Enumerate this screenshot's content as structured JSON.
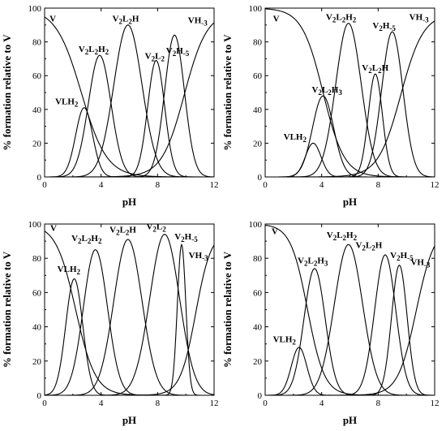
{
  "chart_data": [
    {
      "type": "line",
      "panel": "top-left",
      "xlabel": "pH",
      "ylabel": "% formation relative to V",
      "xlim": [
        0,
        12
      ],
      "ylim": [
        0,
        100
      ],
      "xticks": [
        "0",
        "4",
        "8",
        "12"
      ],
      "yticks": [
        "0",
        "20",
        "40",
        "60",
        "80",
        "100"
      ],
      "series": [
        {
          "name": "V",
          "kind": "decay",
          "mid": 2.6,
          "w": 0.9,
          "peak": 100
        },
        {
          "name": "VLH2",
          "kind": "peak",
          "center": 2.8,
          "w": 0.6,
          "peak": 41
        },
        {
          "name": "V2L2H2",
          "kind": "peak",
          "center": 3.9,
          "w": 0.8,
          "peak": 72
        },
        {
          "name": "V2L2H",
          "kind": "peak",
          "center": 5.9,
          "w": 1.0,
          "peak": 90
        },
        {
          "name": "V2L2",
          "kind": "peak",
          "center": 7.9,
          "w": 0.6,
          "peak": 69
        },
        {
          "name": "V2H-5",
          "kind": "peak",
          "center": 9.2,
          "w": 0.7,
          "peak": 84
        },
        {
          "name": "VH-3",
          "kind": "rise",
          "mid": 9.9,
          "w": 0.8,
          "peak": 98
        }
      ],
      "labels": [
        {
          "series": "V",
          "text": "V",
          "x": 0.35,
          "y": 92
        },
        {
          "series": "VLH2",
          "text": "VLH2",
          "x": 0.75,
          "y": 43
        },
        {
          "series": "V2L2H2",
          "text": "V2L2H2",
          "x": 2.4,
          "y": 74
        },
        {
          "series": "V2L2H",
          "text": "V2L2H",
          "x": 4.8,
          "y": 92
        },
        {
          "series": "V2L2",
          "text": "V2L2",
          "x": 7.1,
          "y": 70
        },
        {
          "series": "V2H-5",
          "text": "V2H-5",
          "x": 8.6,
          "y": 73
        },
        {
          "series": "VH-3",
          "text": "VH-3",
          "x": 10.15,
          "y": 91
        }
      ]
    },
    {
      "type": "line",
      "panel": "top-right",
      "xlabel": "pH",
      "ylabel": "% formation relative to V",
      "xlim": [
        0,
        12
      ],
      "ylim": [
        0,
        100
      ],
      "xticks": [
        "0",
        "4",
        "8",
        "12"
      ],
      "yticks": [
        "0",
        "20",
        "40",
        "60",
        "80",
        "100"
      ],
      "series": [
        {
          "name": "V",
          "kind": "decay",
          "mid": 4.1,
          "w": 0.75,
          "peak": 100
        },
        {
          "name": "VLH2",
          "kind": "peak",
          "center": 3.4,
          "w": 0.55,
          "peak": 20
        },
        {
          "name": "V2L2H3",
          "kind": "peak",
          "center": 4.1,
          "w": 0.75,
          "peak": 48
        },
        {
          "name": "V2L2H2",
          "kind": "peak",
          "center": 5.9,
          "w": 0.9,
          "peak": 91
        },
        {
          "name": "V2L2H",
          "kind": "peak",
          "center": 7.8,
          "w": 0.5,
          "peak": 61
        },
        {
          "name": "V2H-5",
          "kind": "peak",
          "center": 9.0,
          "w": 0.75,
          "peak": 86
        },
        {
          "name": "VH-3",
          "kind": "rise",
          "mid": 9.6,
          "w": 0.8,
          "peak": 97
        }
      ],
      "labels": [
        {
          "series": "V",
          "text": "V",
          "x": 0.55,
          "y": 92
        },
        {
          "series": "VLH2",
          "text": "VLH2",
          "x": 1.3,
          "y": 22
        },
        {
          "series": "V2L2H3",
          "text": "V2L2H3",
          "x": 3.3,
          "y": 50
        },
        {
          "series": "V2L2H2",
          "text": "V2L2H2",
          "x": 4.3,
          "y": 93
        },
        {
          "series": "V2L2H",
          "text": "V2L2H",
          "x": 6.85,
          "y": 63
        },
        {
          "series": "V2H-5",
          "text": "V2H-5",
          "x": 7.6,
          "y": 88
        },
        {
          "series": "VH-3",
          "text": "VH-3",
          "x": 10.2,
          "y": 93
        }
      ]
    },
    {
      "type": "line",
      "panel": "bottom-left",
      "xlabel": "pH",
      "ylabel": "% formation relative to V",
      "xlim": [
        0,
        12
      ],
      "ylim": [
        0,
        100
      ],
      "xticks": [
        "0",
        "4",
        "8",
        "12"
      ],
      "yticks": [
        "0",
        "20",
        "40",
        "60",
        "80",
        "100"
      ],
      "series": [
        {
          "name": "V",
          "kind": "decay",
          "mid": 2.2,
          "w": 0.7,
          "peak": 100
        },
        {
          "name": "VLH2",
          "kind": "peak",
          "center": 2.1,
          "w": 0.6,
          "peak": 68
        },
        {
          "name": "V2L2H2",
          "kind": "peak",
          "center": 3.6,
          "w": 0.85,
          "peak": 85
        },
        {
          "name": "V2L2H",
          "kind": "peak",
          "center": 5.9,
          "w": 1.0,
          "peak": 91
        },
        {
          "name": "V2L2",
          "kind": "peak",
          "center": 8.5,
          "w": 1.05,
          "peak": 94
        },
        {
          "name": "V2H-5",
          "kind": "peak",
          "center": 9.7,
          "w": 0.3,
          "peak": 88
        },
        {
          "name": "VH-3",
          "kind": "rise",
          "mid": 10.7,
          "w": 0.55,
          "peak": 96
        }
      ],
      "labels": [
        {
          "series": "V",
          "text": "V",
          "x": 0.4,
          "y": 96
        },
        {
          "series": "VLH2",
          "text": "VLH2",
          "x": 0.9,
          "y": 72
        },
        {
          "series": "V2L2H2",
          "text": "V2L2H2",
          "x": 1.9,
          "y": 90
        },
        {
          "series": "V2L2H",
          "text": "V2L2H",
          "x": 4.6,
          "y": 95
        },
        {
          "series": "V2L2",
          "text": "V2L2",
          "x": 7.2,
          "y": 97
        },
        {
          "series": "V2H-5",
          "text": "V2H-5",
          "x": 9.2,
          "y": 91
        },
        {
          "series": "VH-3",
          "text": "VH-3",
          "x": 10.2,
          "y": 80
        }
      ]
    },
    {
      "type": "line",
      "panel": "bottom-right",
      "xlabel": "pH",
      "ylabel": "% formation relative to V",
      "xlim": [
        0,
        12
      ],
      "ylim": [
        0,
        100
      ],
      "xticks": [
        "0",
        "4",
        "8",
        "12"
      ],
      "yticks": [
        "0",
        "20",
        "40",
        "60",
        "80",
        "100"
      ],
      "series": [
        {
          "name": "V",
          "kind": "decay",
          "mid": 3.0,
          "w": 0.6,
          "peak": 100
        },
        {
          "name": "VLH2",
          "kind": "peak",
          "center": 2.4,
          "w": 0.55,
          "peak": 28
        },
        {
          "name": "V2L2H3",
          "kind": "peak",
          "center": 3.5,
          "w": 0.75,
          "peak": 74
        },
        {
          "name": "V2L2H2",
          "kind": "peak",
          "center": 5.9,
          "w": 1.0,
          "peak": 88
        },
        {
          "name": "V2L2H",
          "kind": "peak",
          "center": 8.5,
          "w": 0.75,
          "peak": 82
        },
        {
          "name": "V2H-5",
          "kind": "peak",
          "center": 9.5,
          "w": 0.55,
          "peak": 76
        },
        {
          "name": "VH-3",
          "kind": "rise",
          "mid": 10.7,
          "w": 0.65,
          "peak": 99
        }
      ],
      "labels": [
        {
          "series": "V",
          "text": "V",
          "x": 0.45,
          "y": 94
        },
        {
          "series": "VLH2",
          "text": "VLH2",
          "x": 0.55,
          "y": 31
        },
        {
          "series": "V2L2H3",
          "text": "V2L2H3",
          "x": 2.3,
          "y": 77
        },
        {
          "series": "V2L2H2",
          "text": "V2L2H2",
          "x": 4.35,
          "y": 92
        },
        {
          "series": "V2L2H",
          "text": "V2L2H",
          "x": 6.4,
          "y": 86
        },
        {
          "series": "V2H-5",
          "text": "V2H-5",
          "x": 8.85,
          "y": 80
        },
        {
          "series": "VH-3",
          "text": "VH-3",
          "x": 10.3,
          "y": 76
        }
      ]
    }
  ]
}
